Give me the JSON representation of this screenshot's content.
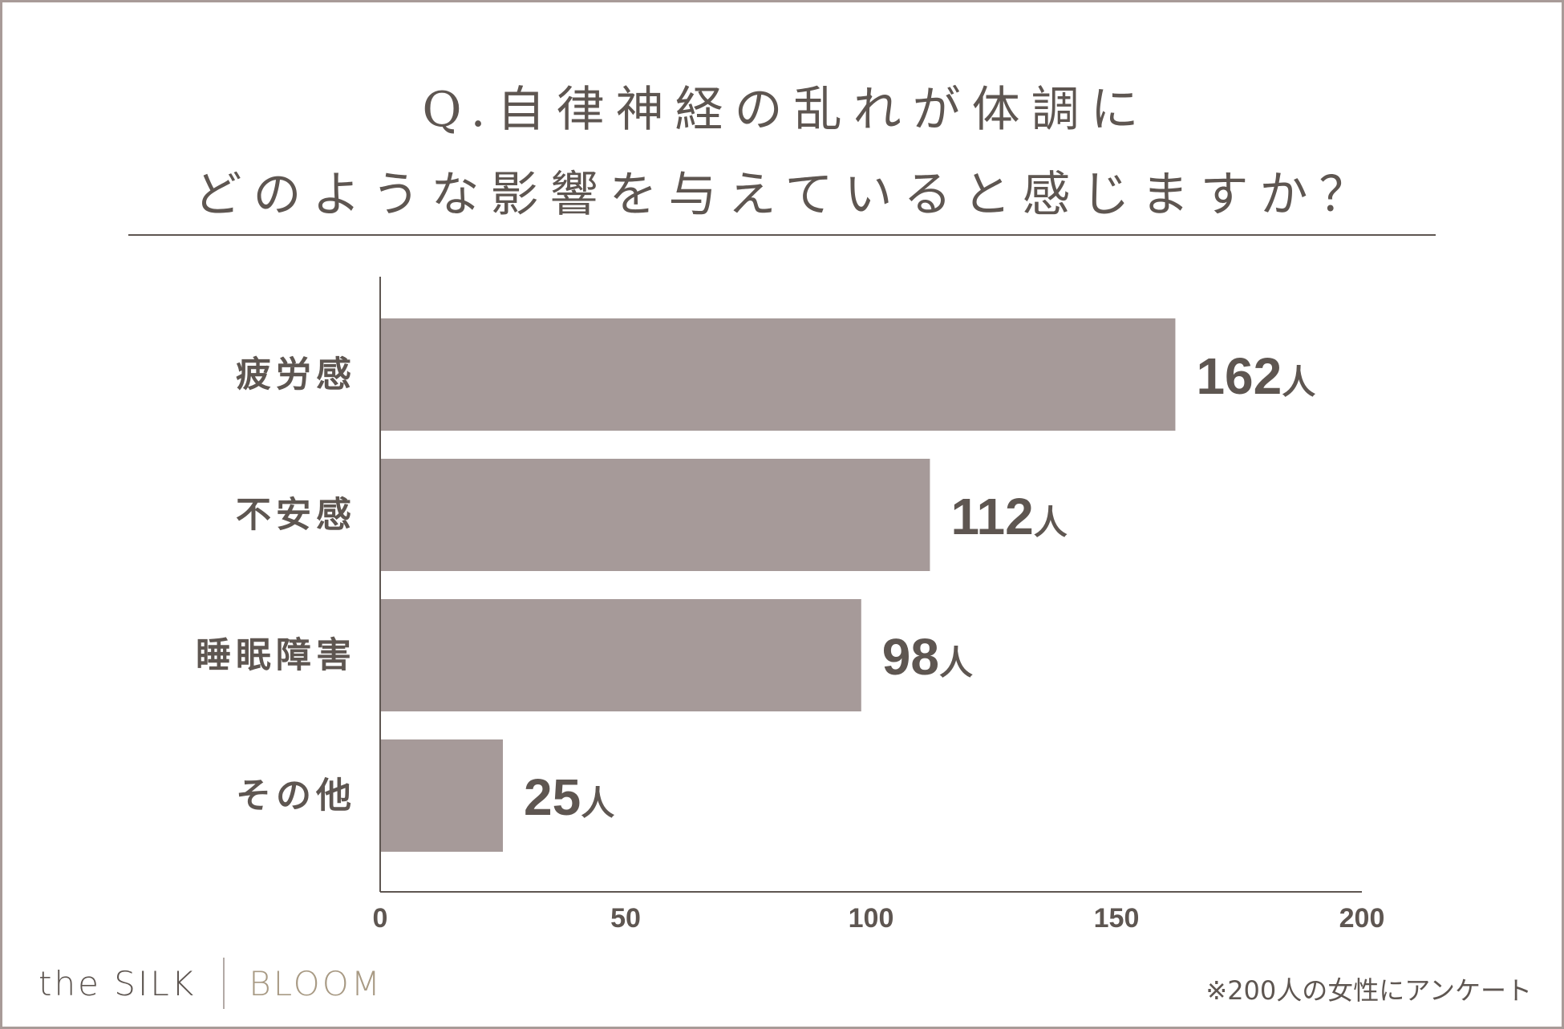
{
  "header": {
    "title_line1": "Q.自律神経の乱れが体調に",
    "title_line2": "どのような影響を与えていると感じますか？"
  },
  "chart_data": {
    "type": "bar",
    "orientation": "horizontal",
    "title": "Q.自律神経の乱れが体調にどのような影響を与えていると感じますか？",
    "categories": [
      "疲労感",
      "不安感",
      "睡眠障害",
      "その他"
    ],
    "values": [
      162,
      112,
      98,
      25
    ],
    "value_unit": "人",
    "xlim": [
      0,
      200
    ],
    "xticks": [
      0,
      50,
      100,
      150,
      200
    ],
    "xlabel": "",
    "ylabel": "",
    "grid": false,
    "bar_color": "#a69a99",
    "text_color": "#5e5651"
  },
  "brand": {
    "primary": "the SILK",
    "secondary": "BLOOM"
  },
  "footnote": "※200人の女性にアンケート"
}
